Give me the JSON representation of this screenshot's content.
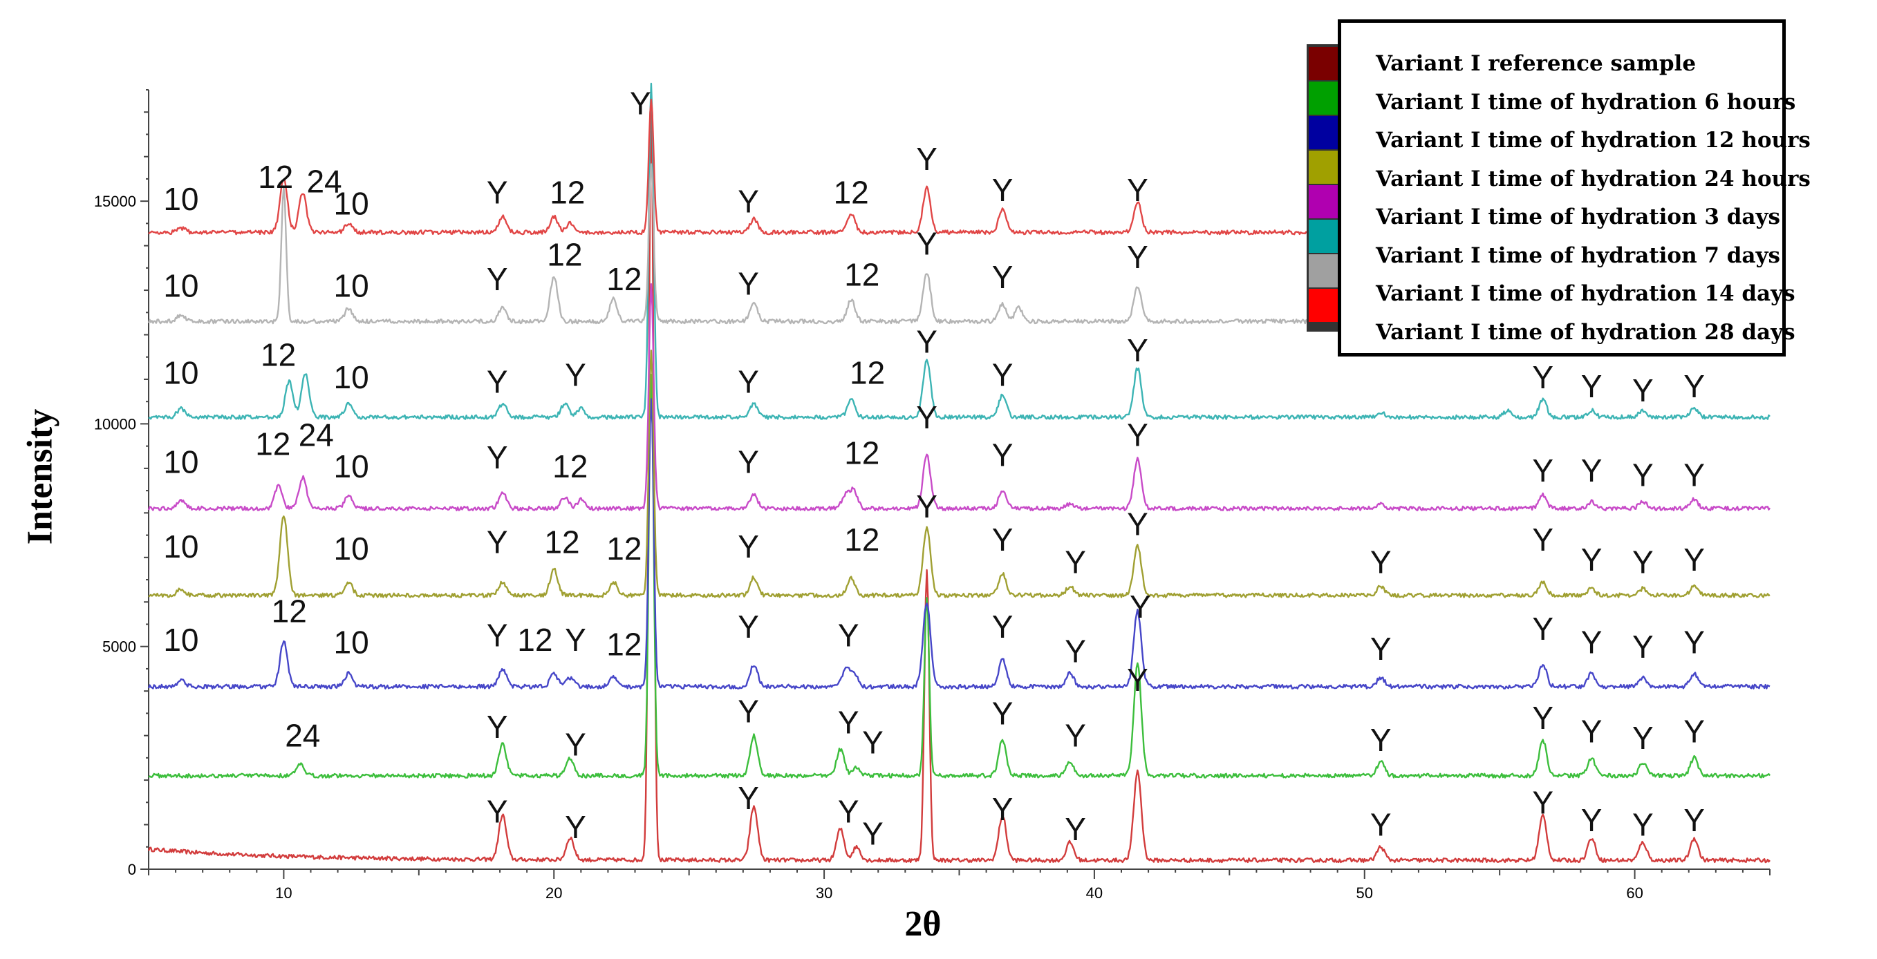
{
  "chart_data": {
    "type": "line",
    "xlabel": "2θ",
    "ylabel": "Intensity",
    "xlim": [
      5,
      65
    ],
    "ylim": [
      0,
      17500
    ],
    "x_ticks": [
      10,
      20,
      30,
      40,
      50,
      60
    ],
    "y_ticks": [
      0,
      5000,
      10000,
      15000
    ],
    "legend_position": "top-right",
    "grid": false,
    "legend": [
      {
        "label": "Variant I reference sample",
        "color": "#7a0000"
      },
      {
        "label": "Variant I time of hydration 6  hours",
        "color": "#00a000"
      },
      {
        "label": "Variant I time of hydration 12 hours",
        "color": "#0000a0"
      },
      {
        "label": "Variant I time of hydration 24 hours",
        "color": "#a0a000"
      },
      {
        "label": "Variant I time of hydration 3 days",
        "color": "#b000b0"
      },
      {
        "label": "Variant I time of hydration 7 days",
        "color": "#00a0a0"
      },
      {
        "label": "Variant I time of hydration 14 days",
        "color": "#a0a0a0"
      },
      {
        "label": "Variant I time of hydration 28 days",
        "color": "#ff0000"
      }
    ],
    "series": [
      {
        "color": "#d23c3c",
        "baseline": 200,
        "peaks": [
          [
            18.1,
            1000
          ],
          [
            20.6,
            500
          ],
          [
            23.6,
            17000
          ],
          [
            27.4,
            1200
          ],
          [
            30.6,
            700
          ],
          [
            31.2,
            300
          ],
          [
            33.8,
            6500
          ],
          [
            36.6,
            1000
          ],
          [
            39.1,
            400
          ],
          [
            41.6,
            2000
          ],
          [
            50.6,
            300
          ],
          [
            56.6,
            1000
          ],
          [
            58.4,
            500
          ],
          [
            60.3,
            400
          ],
          [
            62.2,
            500
          ]
        ]
      },
      {
        "color": "#3cbe3c",
        "baseline": 2100,
        "peaks": [
          [
            10.6,
            250
          ],
          [
            18.1,
            700
          ],
          [
            20.6,
            400
          ],
          [
            23.6,
            9000
          ],
          [
            27.4,
            900
          ],
          [
            30.6,
            600
          ],
          [
            31.2,
            200
          ],
          [
            33.8,
            4000
          ],
          [
            36.6,
            800
          ],
          [
            39.1,
            300
          ],
          [
            41.6,
            2500
          ],
          [
            50.6,
            300
          ],
          [
            56.6,
            800
          ],
          [
            58.4,
            400
          ],
          [
            60.3,
            300
          ],
          [
            62.2,
            400
          ]
        ]
      },
      {
        "color": "#4646c8",
        "baseline": 4100,
        "peaks": [
          [
            6.2,
            150
          ],
          [
            10.0,
            1000
          ],
          [
            12.4,
            300
          ],
          [
            18.1,
            400
          ],
          [
            20.0,
            300
          ],
          [
            20.6,
            200
          ],
          [
            22.2,
            200
          ],
          [
            23.6,
            6500
          ],
          [
            27.4,
            500
          ],
          [
            30.8,
            400
          ],
          [
            31.1,
            300
          ],
          [
            33.8,
            1900
          ],
          [
            36.6,
            600
          ],
          [
            39.1,
            300
          ],
          [
            41.6,
            1700
          ],
          [
            50.6,
            200
          ],
          [
            56.6,
            500
          ],
          [
            58.4,
            300
          ],
          [
            60.3,
            200
          ],
          [
            62.2,
            300
          ]
        ]
      },
      {
        "color": "#a0a032",
        "baseline": 6150,
        "peaks": [
          [
            6.2,
            150
          ],
          [
            10.0,
            1800
          ],
          [
            12.4,
            300
          ],
          [
            18.1,
            300
          ],
          [
            20.0,
            600
          ],
          [
            22.2,
            300
          ],
          [
            23.6,
            5500
          ],
          [
            27.4,
            400
          ],
          [
            31.0,
            400
          ],
          [
            33.8,
            1500
          ],
          [
            36.6,
            500
          ],
          [
            39.1,
            200
          ],
          [
            41.6,
            1100
          ],
          [
            50.6,
            200
          ],
          [
            56.6,
            300
          ],
          [
            58.4,
            150
          ],
          [
            60.3,
            150
          ],
          [
            62.2,
            200
          ]
        ]
      },
      {
        "color": "#c84bc8",
        "baseline": 8100,
        "peaks": [
          [
            6.2,
            200
          ],
          [
            9.8,
            500
          ],
          [
            10.7,
            700
          ],
          [
            12.4,
            300
          ],
          [
            18.1,
            350
          ],
          [
            20.4,
            250
          ],
          [
            21.0,
            200
          ],
          [
            23.6,
            5000
          ],
          [
            27.4,
            300
          ],
          [
            30.8,
            300
          ],
          [
            31.1,
            400
          ],
          [
            33.8,
            1200
          ],
          [
            36.6,
            400
          ],
          [
            39.1,
            100
          ],
          [
            41.6,
            1100
          ],
          [
            50.6,
            100
          ],
          [
            56.6,
            300
          ],
          [
            58.4,
            150
          ],
          [
            60.3,
            150
          ],
          [
            62.2,
            200
          ]
        ]
      },
      {
        "color": "#3cb4b4",
        "baseline": 10150,
        "peaks": [
          [
            6.2,
            200
          ],
          [
            10.2,
            800
          ],
          [
            10.8,
            1000
          ],
          [
            12.4,
            300
          ],
          [
            18.1,
            300
          ],
          [
            20.4,
            300
          ],
          [
            21.0,
            200
          ],
          [
            23.6,
            7500
          ],
          [
            27.4,
            300
          ],
          [
            31.0,
            400
          ],
          [
            33.8,
            1300
          ],
          [
            36.6,
            500
          ],
          [
            41.6,
            1100
          ],
          [
            50.6,
            100
          ],
          [
            55.3,
            150
          ],
          [
            56.6,
            400
          ],
          [
            58.4,
            150
          ],
          [
            60.3,
            150
          ],
          [
            62.2,
            200
          ]
        ]
      },
      {
        "color": "#b4b4b4",
        "baseline": 12300,
        "peaks": [
          [
            6.2,
            150
          ],
          [
            10.0,
            3000
          ],
          [
            12.4,
            300
          ],
          [
            18.1,
            300
          ],
          [
            20.0,
            1000
          ],
          [
            22.2,
            500
          ],
          [
            23.6,
            3500
          ],
          [
            27.4,
            400
          ],
          [
            31.0,
            500
          ],
          [
            33.8,
            1100
          ],
          [
            36.6,
            400
          ],
          [
            37.2,
            300
          ],
          [
            41.6,
            800
          ]
        ]
      },
      {
        "color": "#e14646",
        "baseline": 14300,
        "peaks": [
          [
            6.2,
            100
          ],
          [
            10.0,
            1200
          ],
          [
            10.7,
            900
          ],
          [
            12.4,
            200
          ],
          [
            18.1,
            350
          ],
          [
            20.0,
            350
          ],
          [
            20.6,
            200
          ],
          [
            23.6,
            3000
          ],
          [
            27.4,
            300
          ],
          [
            31.0,
            400
          ],
          [
            33.8,
            1000
          ],
          [
            36.6,
            500
          ],
          [
            41.6,
            700
          ]
        ]
      }
    ],
    "annotations": [
      {
        "text": "10",
        "x": 6.2,
        "y": 14800
      },
      {
        "text": "12",
        "x": 9.7,
        "y": 15300
      },
      {
        "text": "24",
        "x": 11.5,
        "y": 15200
      },
      {
        "text": "10",
        "x": 12.5,
        "y": 14700
      },
      {
        "text": "Y",
        "x": 17.9,
        "y": 14950
      },
      {
        "text": "12",
        "x": 20.5,
        "y": 14950
      },
      {
        "text": "Y",
        "x": 23.2,
        "y": 16950
      },
      {
        "text": "Y",
        "x": 27.2,
        "y": 14750
      },
      {
        "text": "12",
        "x": 31.0,
        "y": 14950
      },
      {
        "text": "Y",
        "x": 33.8,
        "y": 15700
      },
      {
        "text": "Y",
        "x": 36.6,
        "y": 15000
      },
      {
        "text": "Y",
        "x": 41.6,
        "y": 15000
      },
      {
        "text": "10",
        "x": 6.2,
        "y": 12850
      },
      {
        "text": "10",
        "x": 12.5,
        "y": 12850
      },
      {
        "text": "Y",
        "x": 17.9,
        "y": 13000
      },
      {
        "text": "12",
        "x": 20.4,
        "y": 13550
      },
      {
        "text": "12",
        "x": 22.6,
        "y": 13000
      },
      {
        "text": "Y",
        "x": 27.2,
        "y": 12900
      },
      {
        "text": "12",
        "x": 31.4,
        "y": 13100
      },
      {
        "text": "Y",
        "x": 33.8,
        "y": 13800
      },
      {
        "text": "Y",
        "x": 36.6,
        "y": 13050
      },
      {
        "text": "Y",
        "x": 41.6,
        "y": 13500
      },
      {
        "text": "10",
        "x": 6.2,
        "y": 10900
      },
      {
        "text": "12",
        "x": 9.8,
        "y": 11300
      },
      {
        "text": "10",
        "x": 12.5,
        "y": 10800
      },
      {
        "text": "Y",
        "x": 17.9,
        "y": 10700
      },
      {
        "text": "Y",
        "x": 20.8,
        "y": 10850
      },
      {
        "text": "Y",
        "x": 27.2,
        "y": 10700
      },
      {
        "text": "12",
        "x": 31.6,
        "y": 10900
      },
      {
        "text": "Y",
        "x": 33.8,
        "y": 11600
      },
      {
        "text": "Y",
        "x": 36.6,
        "y": 10850
      },
      {
        "text": "Y",
        "x": 41.6,
        "y": 11400
      },
      {
        "text": "Y",
        "x": 56.6,
        "y": 10800
      },
      {
        "text": "Y",
        "x": 58.4,
        "y": 10600
      },
      {
        "text": "Y",
        "x": 60.3,
        "y": 10500
      },
      {
        "text": "Y",
        "x": 62.2,
        "y": 10600
      },
      {
        "text": "10",
        "x": 6.2,
        "y": 8900
      },
      {
        "text": "12",
        "x": 9.6,
        "y": 9300
      },
      {
        "text": "24",
        "x": 11.2,
        "y": 9500
      },
      {
        "text": "10",
        "x": 12.5,
        "y": 8800
      },
      {
        "text": "Y",
        "x": 17.9,
        "y": 9000
      },
      {
        "text": "12",
        "x": 20.6,
        "y": 8800
      },
      {
        "text": "Y",
        "x": 27.2,
        "y": 8900
      },
      {
        "text": "12",
        "x": 31.4,
        "y": 9100
      },
      {
        "text": "Y",
        "x": 33.8,
        "y": 9900
      },
      {
        "text": "Y",
        "x": 36.6,
        "y": 9050
      },
      {
        "text": "Y",
        "x": 41.6,
        "y": 9500
      },
      {
        "text": "Y",
        "x": 56.6,
        "y": 8700
      },
      {
        "text": "Y",
        "x": 58.4,
        "y": 8700
      },
      {
        "text": "Y",
        "x": 60.3,
        "y": 8600
      },
      {
        "text": "Y",
        "x": 62.2,
        "y": 8600
      },
      {
        "text": "10",
        "x": 6.2,
        "y": 7000
      },
      {
        "text": "10",
        "x": 12.5,
        "y": 6950
      },
      {
        "text": "Y",
        "x": 17.9,
        "y": 7100
      },
      {
        "text": "12",
        "x": 20.3,
        "y": 7100
      },
      {
        "text": "12",
        "x": 22.6,
        "y": 6950
      },
      {
        "text": "Y",
        "x": 27.2,
        "y": 7000
      },
      {
        "text": "12",
        "x": 31.4,
        "y": 7150
      },
      {
        "text": "Y",
        "x": 33.8,
        "y": 7900
      },
      {
        "text": "Y",
        "x": 36.6,
        "y": 7150
      },
      {
        "text": "Y",
        "x": 39.3,
        "y": 6650
      },
      {
        "text": "Y",
        "x": 41.6,
        "y": 7500
      },
      {
        "text": "Y",
        "x": 50.6,
        "y": 6650
      },
      {
        "text": "Y",
        "x": 56.6,
        "y": 7150
      },
      {
        "text": "Y",
        "x": 58.4,
        "y": 6700
      },
      {
        "text": "Y",
        "x": 60.3,
        "y": 6650
      },
      {
        "text": "Y",
        "x": 62.2,
        "y": 6700
      },
      {
        "text": "10",
        "x": 6.2,
        "y": 4900
      },
      {
        "text": "12",
        "x": 10.2,
        "y": 5550
      },
      {
        "text": "10",
        "x": 12.5,
        "y": 4850
      },
      {
        "text": "Y",
        "x": 17.9,
        "y": 5000
      },
      {
        "text": "12",
        "x": 19.3,
        "y": 4900
      },
      {
        "text": "Y",
        "x": 20.8,
        "y": 4900
      },
      {
        "text": "12",
        "x": 22.6,
        "y": 4800
      },
      {
        "text": "Y",
        "x": 27.2,
        "y": 5200
      },
      {
        "text": "Y",
        "x": 30.9,
        "y": 5000
      },
      {
        "text": "Y",
        "x": 36.6,
        "y": 5200
      },
      {
        "text": "Y",
        "x": 39.3,
        "y": 4650
      },
      {
        "text": "Y",
        "x": 41.7,
        "y": 5650
      },
      {
        "text": "Y",
        "x": 50.6,
        "y": 4700
      },
      {
        "text": "Y",
        "x": 56.6,
        "y": 5150
      },
      {
        "text": "Y",
        "x": 58.4,
        "y": 4850
      },
      {
        "text": "Y",
        "x": 60.3,
        "y": 4750
      },
      {
        "text": "Y",
        "x": 62.2,
        "y": 4850
      },
      {
        "text": "24",
        "x": 10.7,
        "y": 2750
      },
      {
        "text": "Y",
        "x": 17.9,
        "y": 2950
      },
      {
        "text": "Y",
        "x": 20.8,
        "y": 2550
      },
      {
        "text": "Y",
        "x": 27.2,
        "y": 3300
      },
      {
        "text": "Y",
        "x": 30.9,
        "y": 3050
      },
      {
        "text": "Y",
        "x": 31.8,
        "y": 2600
      },
      {
        "text": "Y",
        "x": 36.6,
        "y": 3250
      },
      {
        "text": "Y",
        "x": 39.3,
        "y": 2750
      },
      {
        "text": "Y",
        "x": 41.6,
        "y": 4000
      },
      {
        "text": "Y",
        "x": 50.6,
        "y": 2650
      },
      {
        "text": "Y",
        "x": 56.6,
        "y": 3150
      },
      {
        "text": "Y",
        "x": 58.4,
        "y": 2850
      },
      {
        "text": "Y",
        "x": 60.3,
        "y": 2700
      },
      {
        "text": "Y",
        "x": 62.2,
        "y": 2850
      },
      {
        "text": "Y",
        "x": 17.9,
        "y": 1050
      },
      {
        "text": "Y",
        "x": 20.8,
        "y": 700
      },
      {
        "text": "Y",
        "x": 27.2,
        "y": 1350
      },
      {
        "text": "Y",
        "x": 30.9,
        "y": 1050
      },
      {
        "text": "Y",
        "x": 31.8,
        "y": 550
      },
      {
        "text": "Y",
        "x": 36.6,
        "y": 1100
      },
      {
        "text": "Y",
        "x": 39.3,
        "y": 650
      },
      {
        "text": "Y",
        "x": 50.6,
        "y": 750
      },
      {
        "text": "Y",
        "x": 56.6,
        "y": 1250
      },
      {
        "text": "Y",
        "x": 58.4,
        "y": 850
      },
      {
        "text": "Y",
        "x": 60.3,
        "y": 750
      },
      {
        "text": "Y",
        "x": 62.2,
        "y": 850
      }
    ]
  }
}
